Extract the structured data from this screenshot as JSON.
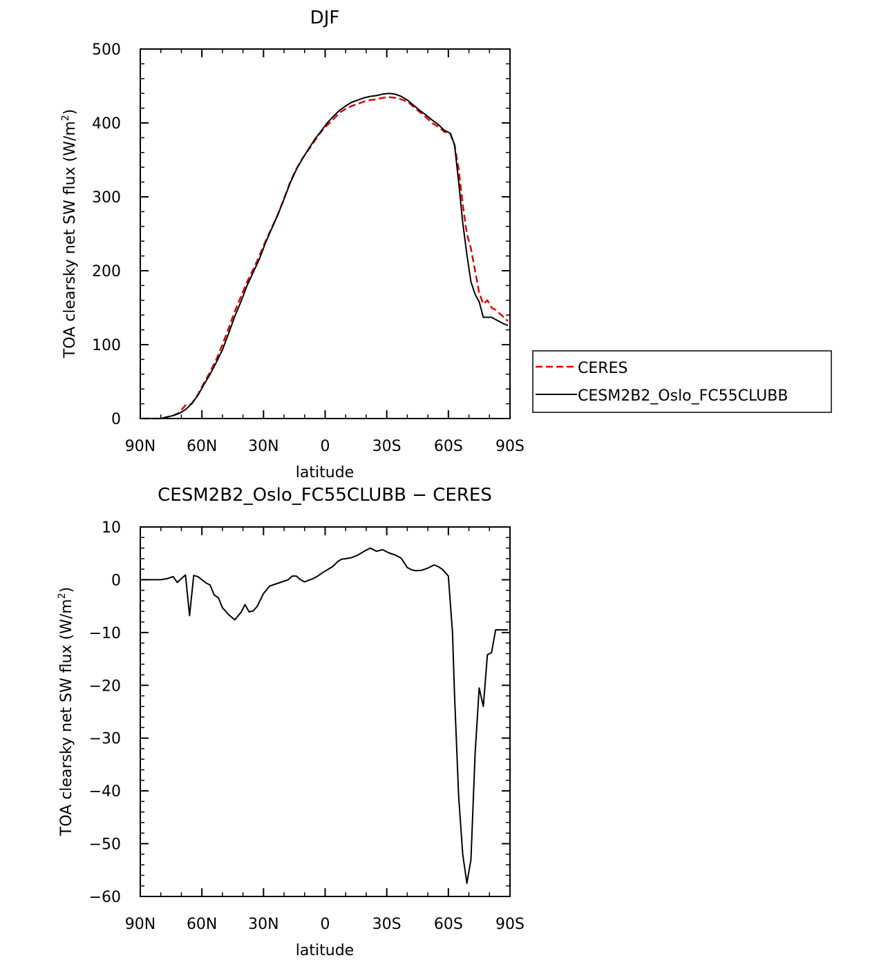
{
  "chart_data": [
    {
      "type": "line",
      "title": "DJF",
      "xlabel": "latitude",
      "ylabel": "TOA clearsky net SW flux (W/m",
      "ylabel_sup": "2",
      "ylabel_close": ")",
      "xlim": [
        90,
        -90
      ],
      "ylim": [
        0,
        500
      ],
      "x_ticks": [
        90,
        60,
        30,
        0,
        -30,
        -60,
        -90
      ],
      "x_tick_labels": [
        "90N",
        "60N",
        "30N",
        "0",
        "30S",
        "60S",
        "90S"
      ],
      "y_ticks": [
        0,
        100,
        200,
        300,
        400,
        500
      ],
      "y_tick_labels": [
        "0",
        "100",
        "200",
        "300",
        "400",
        "500"
      ],
      "legend": {
        "placement": "right",
        "entries": [
          "CERES",
          "CESM2B2_Oslo_FC55CLUBB"
        ]
      },
      "series": [
        {
          "name": "CERES",
          "color": "#e00000",
          "dash": "dashed",
          "x": [
            89,
            86,
            83,
            80,
            77,
            74,
            71,
            68,
            65,
            62,
            59,
            56,
            53,
            50,
            47,
            44,
            41,
            38,
            35,
            32,
            29,
            26,
            23,
            20,
            17,
            14,
            11,
            8,
            5,
            2,
            -1,
            -4,
            -7,
            -10,
            -13,
            -16,
            -19,
            -22,
            -25,
            -28,
            -31,
            -34,
            -37,
            -40,
            -43,
            -46,
            -49,
            -52,
            -55,
            -58,
            -61,
            -63,
            -65,
            -67,
            -69,
            -71,
            -73,
            -75,
            -77,
            -79,
            -81,
            -83,
            -85,
            -87,
            -89
          ],
          "y": [
            0,
            0,
            0,
            0,
            2,
            4,
            8,
            18,
            20,
            32,
            48,
            63,
            80,
            100,
            122,
            145,
            165,
            185,
            202,
            220,
            240,
            258,
            276,
            298,
            320,
            338,
            352,
            364,
            376,
            388,
            397,
            405,
            414,
            419,
            423,
            426,
            429,
            431,
            432,
            434,
            435,
            434,
            432,
            429,
            422,
            415,
            408,
            400,
            395,
            388,
            385,
            370,
            338,
            290,
            250,
            230,
            200,
            170,
            155,
            160,
            150,
            147,
            142,
            137,
            132
          ]
        },
        {
          "name": "CESM2B2_Oslo_FC55CLUBB",
          "color": "#000000",
          "dash": "solid",
          "x": [
            89,
            86,
            83,
            80,
            77,
            74,
            71,
            68,
            65,
            62,
            59,
            56,
            53,
            50,
            47,
            44,
            41,
            38,
            35,
            32,
            29,
            26,
            23,
            20,
            17,
            14,
            11,
            8,
            5,
            2,
            -1,
            -4,
            -7,
            -10,
            -13,
            -16,
            -19,
            -22,
            -25,
            -28,
            -31,
            -34,
            -37,
            -40,
            -43,
            -46,
            -49,
            -52,
            -55,
            -58,
            -61,
            -63,
            -65,
            -67,
            -69,
            -71,
            -73,
            -75,
            -77,
            -79,
            -81,
            -83,
            -85,
            -87,
            -89
          ],
          "y": [
            0,
            0,
            0,
            0,
            2,
            4,
            7,
            12,
            20,
            31,
            46,
            60,
            76,
            93,
            115,
            138,
            158,
            180,
            198,
            216,
            238,
            257,
            276,
            297,
            319,
            337,
            352,
            365,
            378,
            389,
            400,
            409,
            417,
            423,
            428,
            431,
            434,
            436,
            437,
            439,
            440,
            439,
            436,
            431,
            424,
            417,
            411,
            404,
            398,
            390,
            386,
            370,
            320,
            265,
            222,
            185,
            168,
            158,
            137,
            137,
            137,
            134,
            131,
            128,
            126
          ]
        }
      ]
    },
    {
      "type": "line",
      "title": "CESM2B2_Oslo_FC55CLUBB − CERES",
      "xlabel": "latitude",
      "ylabel": "TOA clearsky net SW flux (W/m",
      "ylabel_sup": "2",
      "ylabel_close": ")",
      "xlim": [
        90,
        -90
      ],
      "ylim": [
        -60,
        10
      ],
      "x_ticks": [
        90,
        60,
        30,
        0,
        -30,
        -60,
        -90
      ],
      "x_tick_labels": [
        "90N",
        "60N",
        "30N",
        "0",
        "30S",
        "60S",
        "90S"
      ],
      "y_ticks": [
        10,
        0,
        -10,
        -20,
        -30,
        -40,
        -50,
        -60
      ],
      "y_tick_labels": [
        "10",
        "0",
        "−10",
        "−20",
        "−30",
        "−40",
        "−50",
        "−60"
      ],
      "series": [
        {
          "color": "#000000",
          "dash": "solid",
          "x": [
            89,
            86,
            83,
            80,
            77,
            74,
            72,
            70,
            68,
            66,
            64,
            62,
            60,
            58,
            56,
            54,
            52,
            50,
            47,
            44,
            41,
            39,
            37,
            35,
            33,
            30,
            27,
            24,
            21,
            18,
            16,
            14,
            12,
            10,
            8,
            6,
            4,
            1,
            -2,
            -4,
            -6,
            -8,
            -10,
            -13,
            -16,
            -19,
            -22,
            -25,
            -28,
            -31,
            -34,
            -37,
            -40,
            -42,
            -44,
            -47,
            -50,
            -53,
            -55,
            -57,
            -60,
            -62,
            -63,
            -65,
            -67,
            -69,
            -71,
            -73,
            -75,
            -77,
            -79,
            -81,
            -83,
            -85,
            -87,
            -89
          ],
          "y": [
            0,
            0,
            0,
            0,
            0.2,
            0.6,
            -0.5,
            0.2,
            0.9,
            -6.8,
            0.8,
            0.6,
            0,
            -0.6,
            -1.0,
            -2.9,
            -3.4,
            -5.3,
            -6.6,
            -7.6,
            -6.2,
            -4.7,
            -6.1,
            -5.9,
            -5.0,
            -2.6,
            -1.2,
            -0.8,
            -0.4,
            0,
            0.7,
            0.7,
            0,
            -0.4,
            -0.1,
            0.2,
            0.6,
            1.4,
            2.1,
            2.6,
            3.4,
            3.9,
            4.0,
            4.2,
            4.7,
            5.4,
            6.0,
            5.4,
            5.7,
            5.1,
            4.7,
            4.1,
            2.3,
            1.9,
            1.7,
            1.8,
            2.2,
            2.8,
            2.5,
            2.0,
            0.7,
            -10,
            -22,
            -41,
            -52,
            -57.5,
            -53,
            -33,
            -20.5,
            -24,
            -14.2,
            -13.8,
            -9.5,
            -9.5,
            -9.5,
            -9.5
          ]
        }
      ]
    }
  ]
}
